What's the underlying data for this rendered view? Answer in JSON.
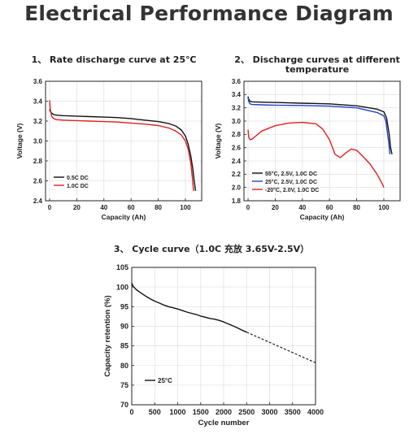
{
  "page_title": "Electrical Performance Diagram",
  "chart_data": [
    {
      "id": "rate",
      "type": "line",
      "title": "1、 Rate discharge curve at 25℃",
      "xlabel": "Capacity (Ah)",
      "ylabel": "Voltage (V)",
      "xlim": [
        -3,
        112
      ],
      "ylim": [
        2.4,
        3.6
      ],
      "xticks": [
        "0",
        "20",
        "40",
        "60",
        "80",
        "100"
      ],
      "yticks": [
        "2.4",
        "2.6",
        "2.8",
        "3.0",
        "3.2",
        "3.4",
        "3.6"
      ],
      "grid": true,
      "legend": "bottom-left",
      "series": [
        {
          "name": "0.5C DC",
          "color": "#111111",
          "x": [
            0,
            0.5,
            1.5,
            3,
            5,
            10,
            20,
            30,
            40,
            50,
            60,
            70,
            80,
            88,
            93,
            97,
            100,
            102,
            104,
            105.5,
            106.5,
            107.5
          ],
          "y": [
            3.32,
            3.3,
            3.28,
            3.265,
            3.26,
            3.255,
            3.25,
            3.245,
            3.24,
            3.235,
            3.225,
            3.21,
            3.195,
            3.175,
            3.15,
            3.11,
            3.05,
            2.97,
            2.85,
            2.72,
            2.6,
            2.5
          ]
        },
        {
          "name": "1.0C DC",
          "color": "#e02020",
          "x": [
            0,
            0.5,
            1.5,
            3,
            5,
            10,
            20,
            30,
            40,
            50,
            60,
            70,
            80,
            88,
            93,
            97,
            100,
            102,
            104,
            105,
            106
          ],
          "y": [
            3.41,
            3.32,
            3.25,
            3.225,
            3.215,
            3.21,
            3.205,
            3.2,
            3.195,
            3.19,
            3.18,
            3.17,
            3.155,
            3.13,
            3.1,
            3.06,
            3.0,
            2.92,
            2.78,
            2.65,
            2.5
          ]
        }
      ]
    },
    {
      "id": "temperature",
      "type": "line",
      "title": "2、 Discharge curves at different temperature",
      "xlabel": "Capacity (Ah)",
      "ylabel": "Voltage (V)",
      "xlim": [
        -3,
        112
      ],
      "ylim": [
        1.8,
        3.6
      ],
      "xticks": [
        "0",
        "20",
        "40",
        "60",
        "80",
        "100"
      ],
      "yticks": [
        "1.8",
        "2.0",
        "2.2",
        "2.4",
        "2.6",
        "2.8",
        "3.0",
        "3.2",
        "3.4",
        "3.6"
      ],
      "grid": true,
      "legend": "bottom-left",
      "series": [
        {
          "name": "55°C, 2.5V, 1.0C DC",
          "color": "#111111",
          "x": [
            0,
            0.5,
            1.5,
            3,
            10,
            20,
            40,
            60,
            80,
            95,
            100,
            102,
            104,
            105,
            106
          ],
          "y": [
            3.37,
            3.33,
            3.3,
            3.29,
            3.285,
            3.28,
            3.27,
            3.26,
            3.23,
            3.18,
            3.14,
            3.05,
            2.8,
            2.6,
            2.5
          ]
        },
        {
          "name": "25°C, 2.5V, 1.0C DC",
          "color": "#2040d0",
          "x": [
            0,
            0.5,
            1.5,
            3,
            10,
            20,
            40,
            60,
            80,
            95,
            100,
            101.5,
            102.5,
            103.5,
            104.5
          ],
          "y": [
            3.36,
            3.3,
            3.26,
            3.25,
            3.245,
            3.24,
            3.235,
            3.225,
            3.2,
            3.13,
            3.08,
            3.0,
            2.85,
            2.7,
            2.5
          ]
        },
        {
          "name": "-20°C, 2.0V, 1.0C DC",
          "color": "#e02020",
          "x": [
            0,
            0.5,
            1.5,
            3,
            6,
            10,
            20,
            30,
            40,
            50,
            55,
            60,
            64,
            68,
            72,
            76,
            80,
            85,
            90,
            95,
            99,
            100
          ],
          "y": [
            2.87,
            2.76,
            2.72,
            2.73,
            2.78,
            2.85,
            2.93,
            2.97,
            2.98,
            2.96,
            2.88,
            2.72,
            2.5,
            2.45,
            2.52,
            2.58,
            2.56,
            2.46,
            2.35,
            2.2,
            2.05,
            2.0
          ]
        }
      ]
    },
    {
      "id": "cycle",
      "type": "line",
      "title": "3、 Cycle curve（1.0C 充放 3.65V-2.5V）",
      "xlabel": "Cycle number",
      "ylabel": "Capacity retention (%)",
      "xlim": [
        0,
        4000
      ],
      "ylim": [
        70,
        105
      ],
      "xticks": [
        "0",
        "500",
        "1000",
        "1500",
        "2000",
        "2500",
        "3000",
        "3500",
        "4000"
      ],
      "yticks": [
        "70",
        "75",
        "80",
        "85",
        "90",
        "95",
        "100",
        "105"
      ],
      "grid": true,
      "legend": "bottom-left",
      "series": [
        {
          "name": "25°C",
          "color": "#111111",
          "x": [
            0,
            30,
            100,
            200,
            300,
            400,
            500,
            600,
            700,
            800,
            900,
            1000,
            1100,
            1200,
            1300,
            1400,
            1500,
            1600,
            1700,
            1800,
            1900,
            2000,
            2100,
            2200,
            2300,
            2400,
            2500
          ],
          "y": [
            101.0,
            100.2,
            99.3,
            98.5,
            97.7,
            97.0,
            96.4,
            95.9,
            95.4,
            95.0,
            94.7,
            94.4,
            94.0,
            93.6,
            93.3,
            93.0,
            92.6,
            92.3,
            92.0,
            91.8,
            91.5,
            91.1,
            90.6,
            90.1,
            89.6,
            89.0,
            88.5
          ]
        },
        {
          "name": "",
          "color": "#111111",
          "dashed": true,
          "x": [
            2500,
            4000
          ],
          "y": [
            88.5,
            80.7
          ]
        }
      ]
    }
  ]
}
